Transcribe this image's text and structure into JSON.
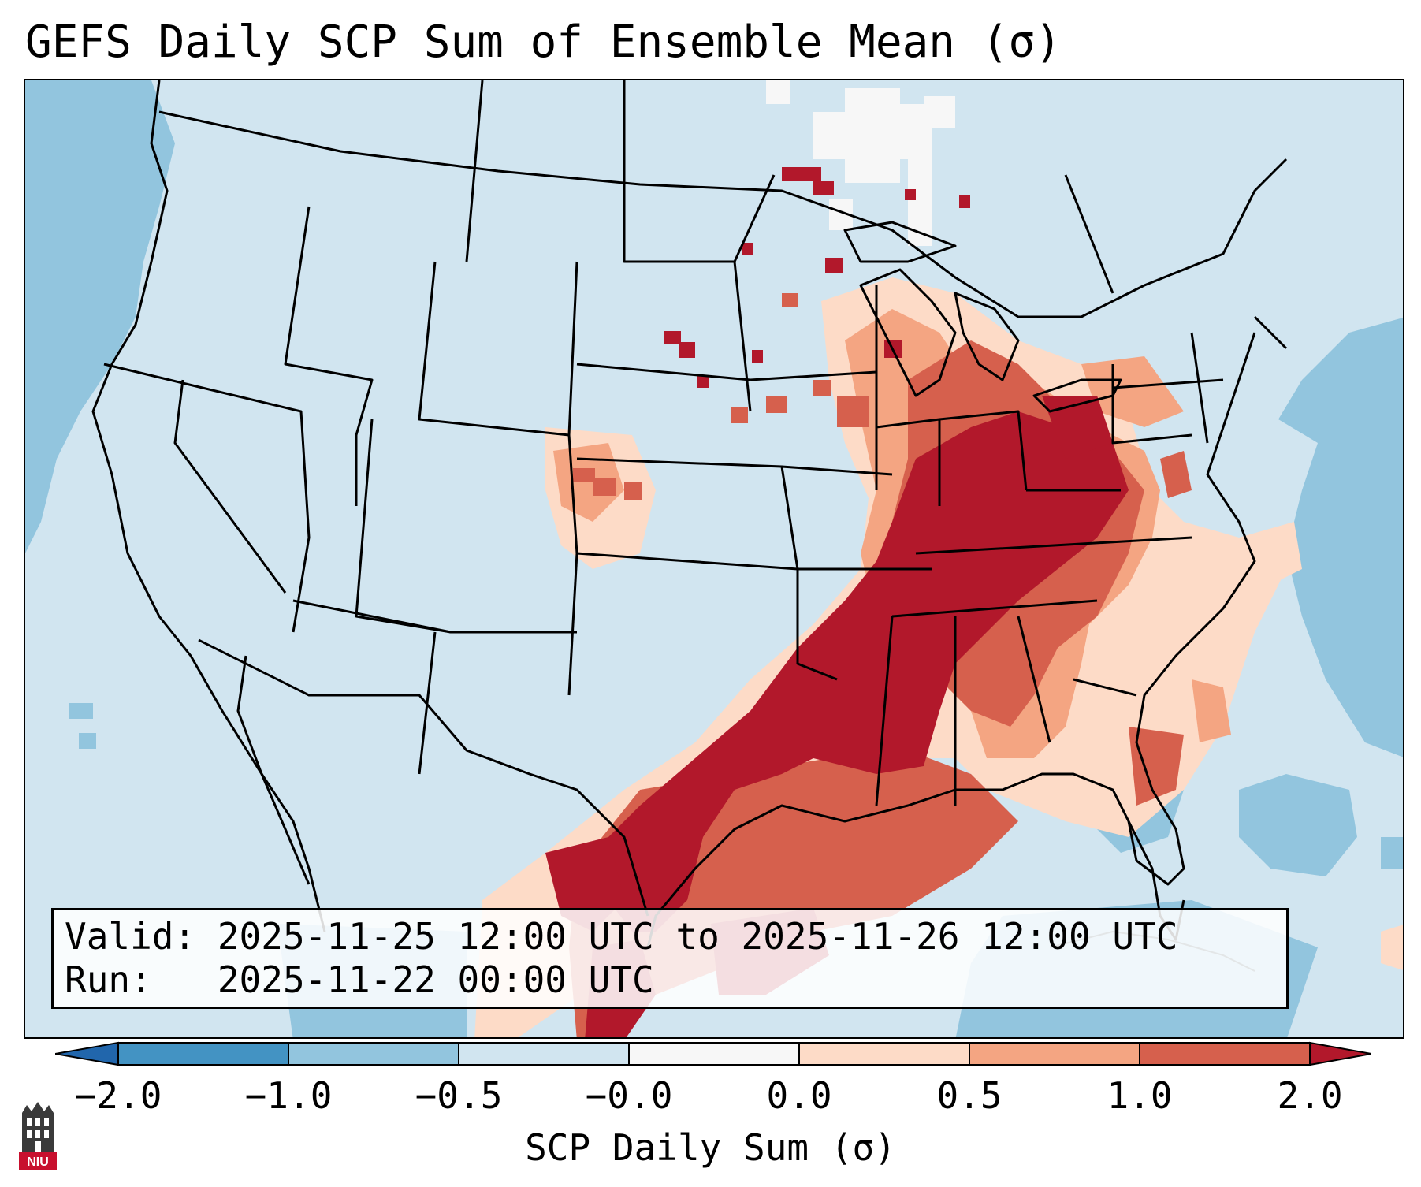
{
  "title": "GEFS Daily SCP Sum of Ensemble Mean (σ)",
  "info": {
    "valid_line": "Valid: 2025-11-25 12:00 UTC to 2025-11-26 12:00 UTC",
    "run_line": "Run:   2025-11-22 00:00 UTC"
  },
  "colorbar": {
    "label": "SCP Daily Sum (σ)",
    "ticks": [
      "−2.0",
      "−1.0",
      "−0.5",
      "−0.0",
      "0.0",
      "0.5",
      "1.0",
      "2.0"
    ],
    "colors": [
      "#2166ac",
      "#4393c3",
      "#92c5de",
      "#d1e5f0",
      "#f7f7f7",
      "#fddbc7",
      "#f4a582",
      "#d6604d",
      "#b2182b"
    ],
    "bins": [
      {
        "color": "#4393c3",
        "range": [
          -2.0,
          -1.0
        ]
      },
      {
        "color": "#92c5de",
        "range": [
          -1.0,
          -0.5
        ]
      },
      {
        "color": "#d1e5f0",
        "range": [
          -0.5,
          0.0
        ]
      },
      {
        "color": "#f7f7f7",
        "range": [
          0.0,
          0.0
        ]
      },
      {
        "color": "#fddbc7",
        "range": [
          0.0,
          0.5
        ]
      },
      {
        "color": "#f4a582",
        "range": [
          0.5,
          1.0
        ]
      },
      {
        "color": "#d6604d",
        "range": [
          1.0,
          2.0
        ]
      }
    ],
    "extend_low": "#2166ac",
    "extend_high": "#b2182b"
  },
  "logo": {
    "text": "NIU",
    "color": "#c8102e"
  }
}
